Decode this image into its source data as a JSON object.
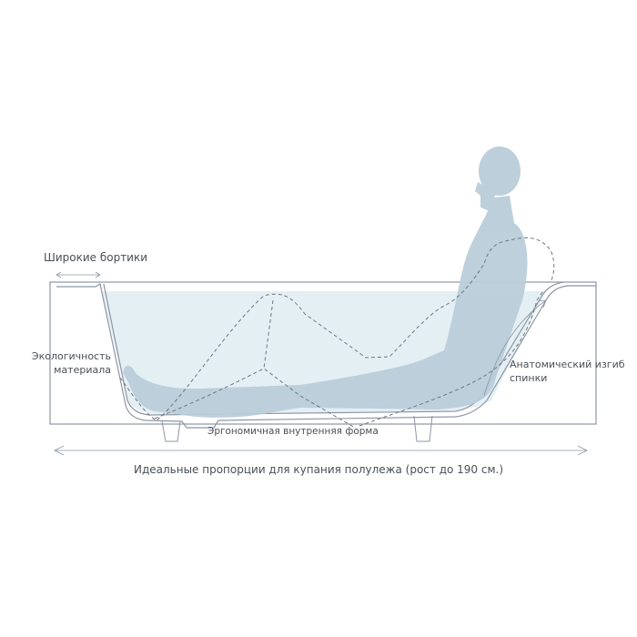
{
  "labels": {
    "wide_rims": "Широкие бортики",
    "eco_material_line1": "Экологичность",
    "eco_material_line2": "материала",
    "anatomic_back_line1": "Анатомический изгиб",
    "anatomic_back_line2": "спинки",
    "ergonomic_shape": "Эргономичная внутренняя форма",
    "proportions": "Идеальные пропорции для купания полулежа (рост до 190 см.)"
  },
  "colors": {
    "outline": "#8e96a3",
    "water": "#e4eff4",
    "silhouette": "#b8ccd8",
    "dashed": "#6f7784"
  }
}
